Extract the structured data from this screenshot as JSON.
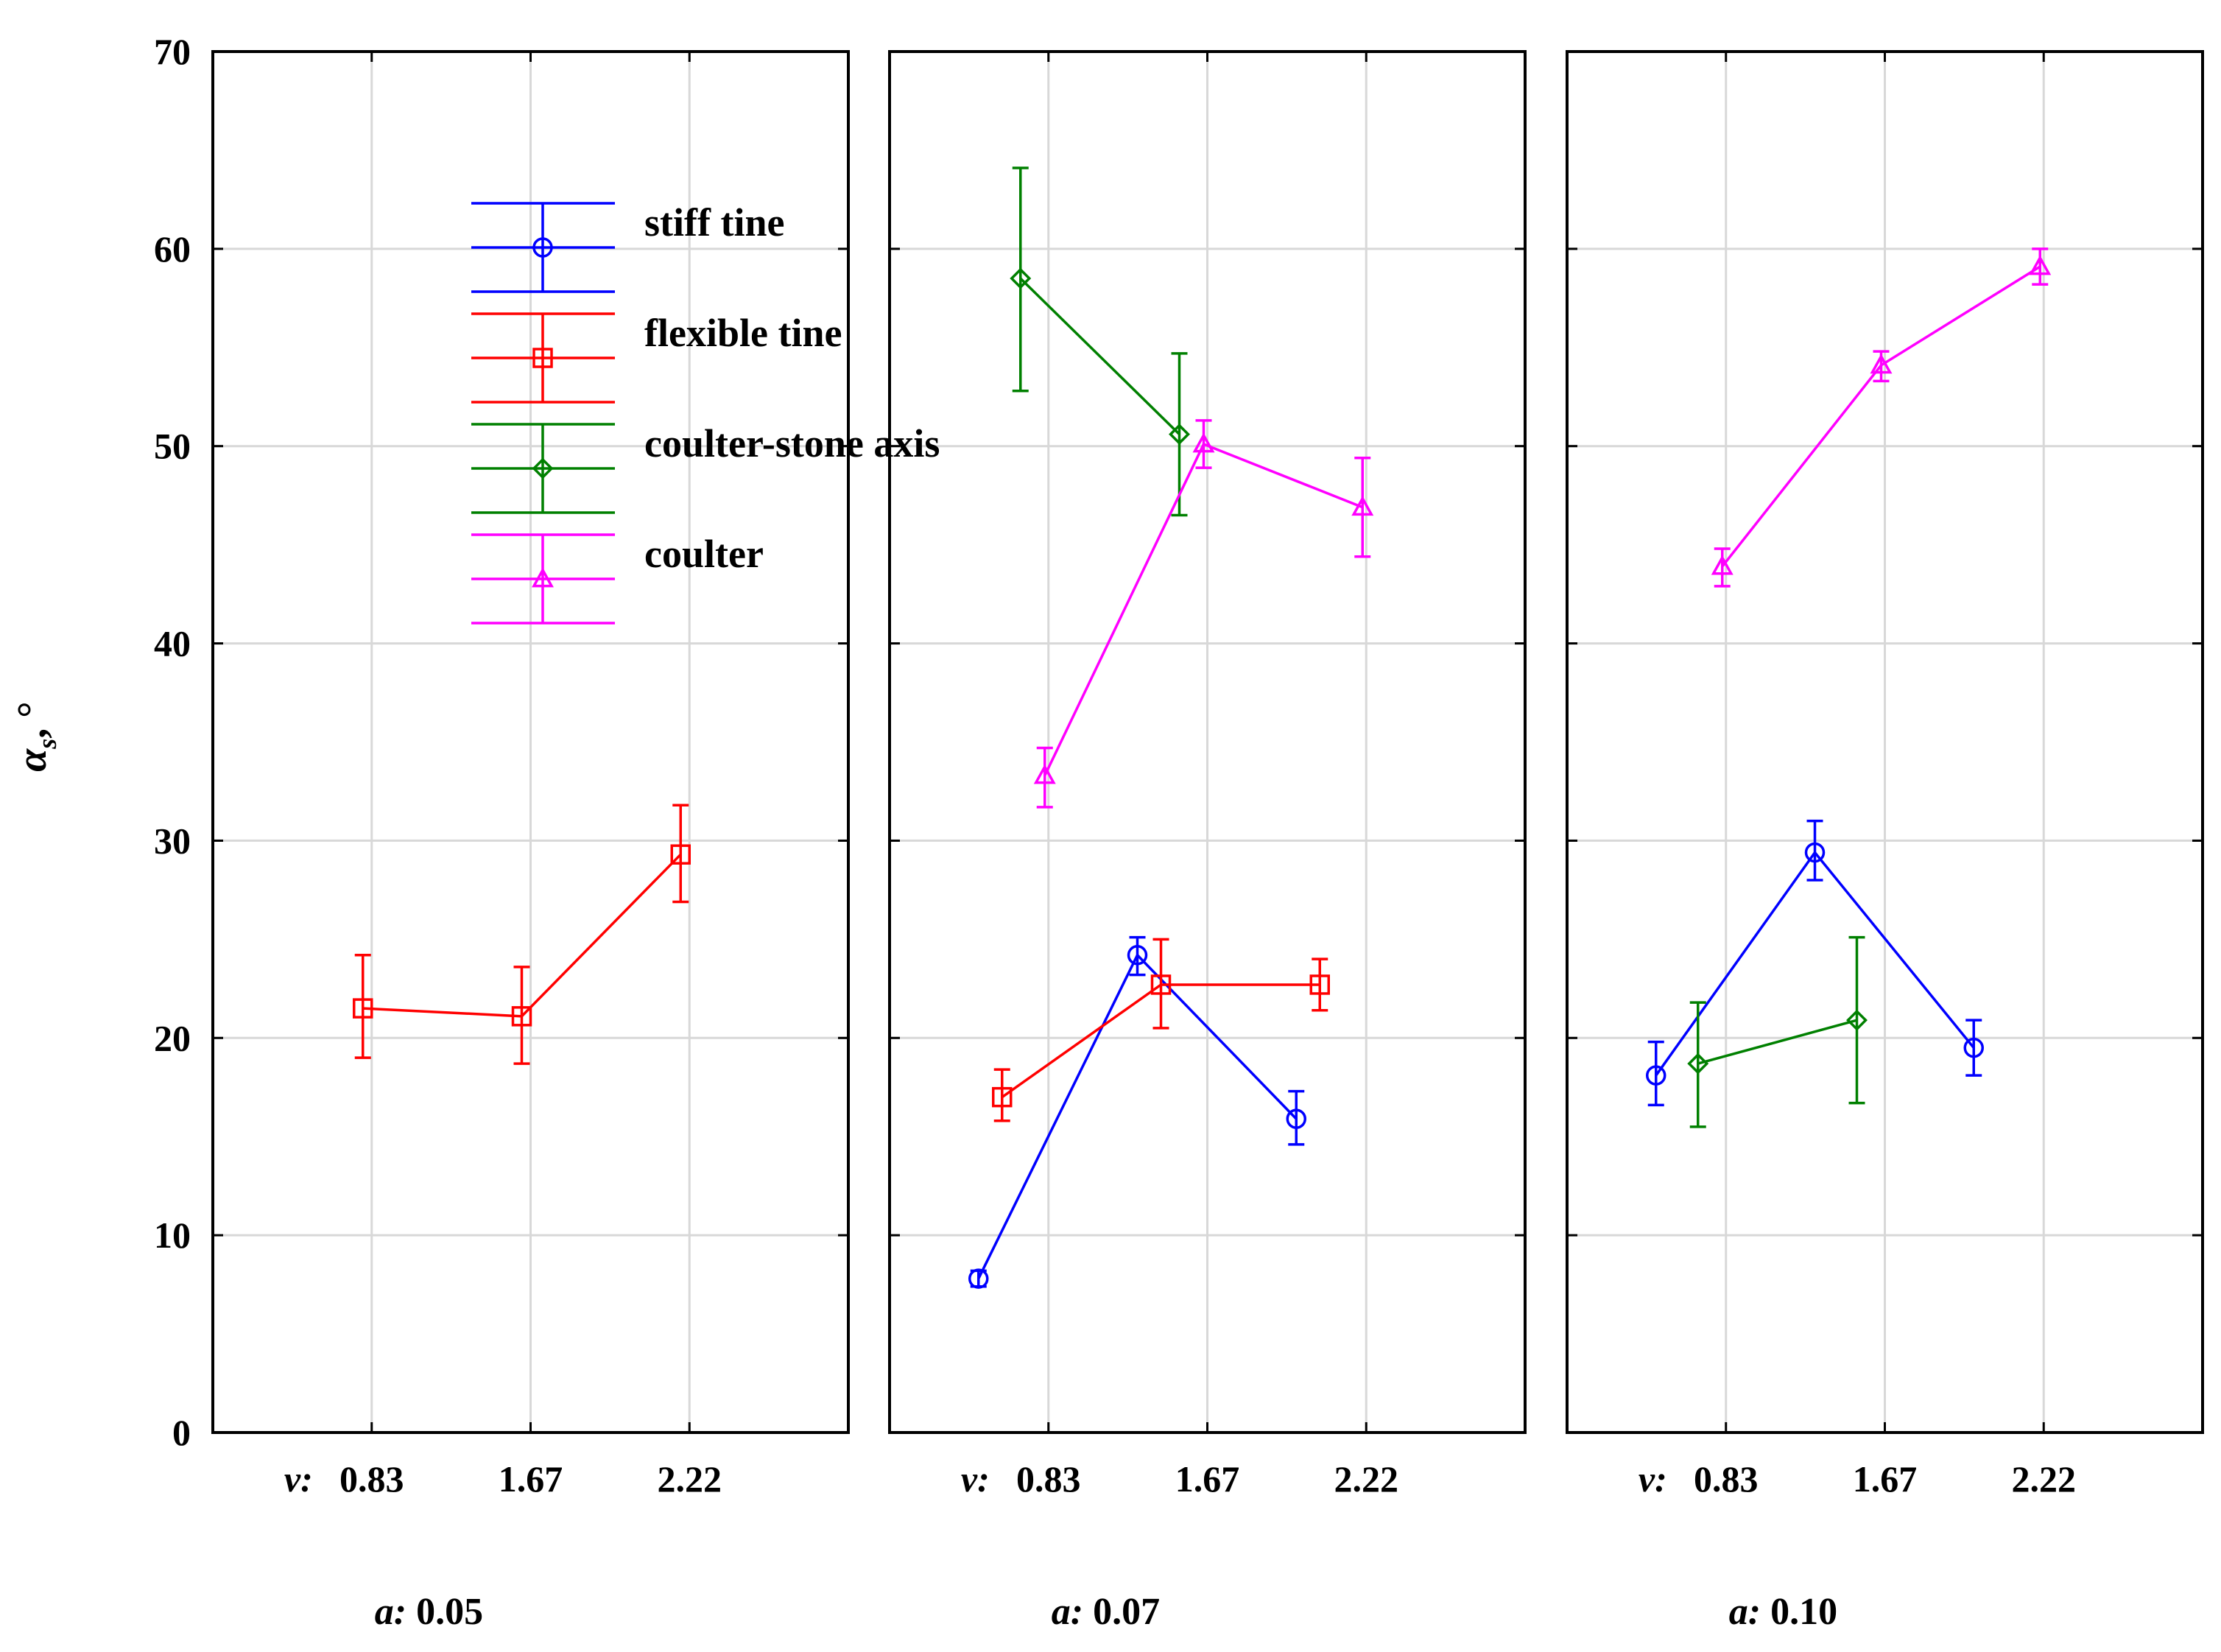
{
  "chart_data": {
    "type": "line",
    "title": "",
    "ylabel": "α_s, °",
    "ylabel_main": "α",
    "ylabel_sub": "s",
    "ylabel_unit": ", °",
    "ylim": [
      0,
      70
    ],
    "y_ticks": [
      0,
      10,
      20,
      30,
      40,
      50,
      60,
      70
    ],
    "y_tick_labels": [
      "0",
      "10",
      "20",
      "30",
      "40",
      "50",
      "60",
      "70"
    ],
    "x_var_label": "v:",
    "categories": [
      "0.83",
      "1.67",
      "2.22"
    ],
    "legend_position": "top-left of first panel",
    "series_meta": [
      {
        "name": "stiff tine",
        "color": "#0000ff",
        "marker": "circle"
      },
      {
        "name": "flexible tine",
        "color": "#ff0000",
        "marker": "square"
      },
      {
        "name": "coulter-stone axis",
        "color": "#008000",
        "marker": "diamond"
      },
      {
        "name": "coulter",
        "color": "#ff00ff",
        "marker": "triangle"
      }
    ],
    "panels": [
      {
        "label_var": "a:",
        "label_value": "0.05",
        "series": [
          {
            "name": "flexible tine",
            "values": [
              21.5,
              21.1,
              29.3
            ],
            "error_low": [
              19.0,
              18.7,
              26.9
            ],
            "error_high": [
              24.2,
              23.6,
              31.8
            ]
          }
        ]
      },
      {
        "label_var": "a:",
        "label_value": "0.07",
        "series": [
          {
            "name": "stiff tine",
            "values": [
              7.8,
              24.2,
              15.9
            ],
            "error_low": [
              7.4,
              23.2,
              14.6
            ],
            "error_high": [
              8.2,
              25.1,
              17.3
            ]
          },
          {
            "name": "flexible tine",
            "values": [
              17.0,
              22.7,
              22.7
            ],
            "error_low": [
              15.8,
              20.5,
              21.4
            ],
            "error_high": [
              18.4,
              25.0,
              24.0
            ]
          },
          {
            "name": "coulter-stone axis",
            "values": [
              58.5,
              50.6,
              null
            ],
            "error_low": [
              52.8,
              46.5,
              null
            ],
            "error_high": [
              64.1,
              54.7,
              null
            ]
          },
          {
            "name": "coulter",
            "values": [
              33.3,
              50.1,
              46.9
            ],
            "error_low": [
              31.7,
              48.9,
              44.4
            ],
            "error_high": [
              34.7,
              51.3,
              49.4
            ]
          }
        ]
      },
      {
        "label_var": "a:",
        "label_value": "0.10",
        "series": [
          {
            "name": "stiff tine",
            "values": [
              18.1,
              29.4,
              19.5
            ],
            "error_low": [
              16.6,
              28.0,
              18.1
            ],
            "error_high": [
              19.8,
              31.0,
              20.9
            ]
          },
          {
            "name": "coulter-stone axis",
            "values": [
              18.7,
              20.9,
              null
            ],
            "error_low": [
              15.5,
              16.7,
              null
            ],
            "error_high": [
              21.8,
              25.1,
              null
            ]
          },
          {
            "name": "coulter",
            "values": [
              43.9,
              54.1,
              59.1
            ],
            "error_low": [
              42.9,
              53.3,
              58.2
            ],
            "error_high": [
              44.8,
              54.8,
              60.0
            ]
          }
        ]
      }
    ]
  }
}
